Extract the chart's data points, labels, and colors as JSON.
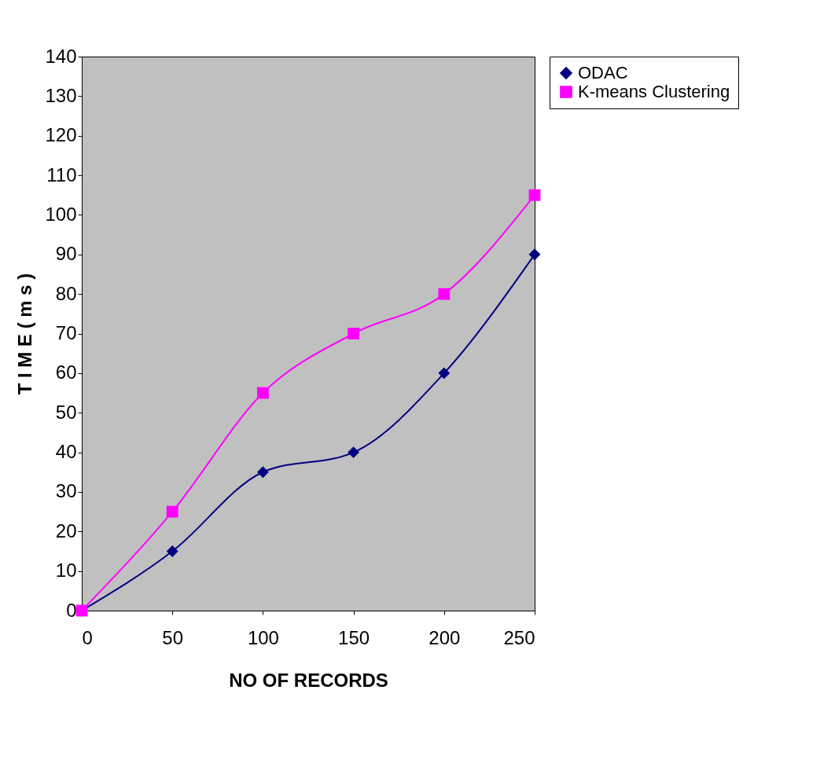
{
  "chart_data": {
    "type": "line",
    "xlabel": "NO OF RECORDS",
    "ylabel": "T I M E ( m s )",
    "x": [
      0,
      50,
      100,
      150,
      200,
      250
    ],
    "series": [
      {
        "name": "ODAC",
        "color": "#000080",
        "marker": "diamond",
        "values": [
          0,
          15,
          35,
          40,
          60,
          90
        ]
      },
      {
        "name": "K-means Clustering",
        "color": "#ff00ff",
        "marker": "square",
        "values": [
          0,
          25,
          55,
          70,
          80,
          105
        ]
      }
    ],
    "xlim": [
      0,
      250
    ],
    "xticks": [
      0,
      50,
      100,
      150,
      200,
      250
    ],
    "ylim": [
      0,
      140
    ],
    "yticks": [
      0,
      10,
      20,
      30,
      40,
      50,
      60,
      70,
      80,
      90,
      100,
      110,
      120,
      130,
      140
    ],
    "legend": "right",
    "line_style": "solid"
  }
}
